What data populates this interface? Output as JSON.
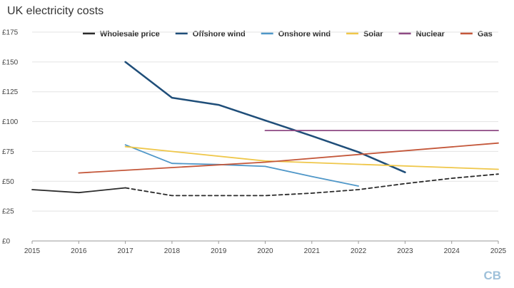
{
  "chart_data": {
    "type": "line",
    "title": "UK electricity costs",
    "xlabel": "",
    "ylabel": "",
    "x_categories": [
      "2015",
      "2016",
      "2017",
      "2018",
      "2019",
      "2020",
      "2021",
      "2022",
      "2023",
      "2024",
      "2025"
    ],
    "y_ticks": [
      "£0",
      "£25",
      "£50",
      "£75",
      "£100",
      "£125",
      "£150",
      "£175"
    ],
    "ylim": [
      0,
      175
    ],
    "grid": true,
    "legend_position": "top",
    "series": [
      {
        "name": "Wholesale price",
        "color": "#2b2b2b",
        "style": "solid-then-dashed",
        "dashed_from_x": 2017,
        "points": [
          [
            2015,
            43
          ],
          [
            2016,
            40.5
          ],
          [
            2017,
            44.5
          ],
          [
            2018,
            38
          ],
          [
            2019,
            38
          ],
          [
            2020,
            38
          ],
          [
            2021,
            40
          ],
          [
            2022,
            43
          ],
          [
            2023,
            48
          ],
          [
            2024,
            52.5
          ],
          [
            2025,
            56
          ]
        ]
      },
      {
        "name": "Offshore wind",
        "color": "#1f4e79",
        "style": "solid",
        "points": [
          [
            2017,
            150
          ],
          [
            2018,
            120
          ],
          [
            2019,
            114
          ],
          [
            2020,
            101
          ],
          [
            2021,
            88
          ],
          [
            2022,
            74.5
          ],
          [
            2023,
            57.5
          ]
        ]
      },
      {
        "name": "Onshore wind",
        "color": "#4f97c8",
        "style": "solid",
        "points": [
          [
            2017,
            80.5
          ],
          [
            2018,
            65
          ],
          [
            2019,
            64
          ],
          [
            2020,
            62.5
          ],
          [
            2021,
            54
          ],
          [
            2022,
            46
          ]
        ]
      },
      {
        "name": "Solar",
        "color": "#efc74a",
        "style": "solid",
        "points": [
          [
            2017,
            79
          ],
          [
            2020,
            67
          ],
          [
            2025,
            60
          ]
        ]
      },
      {
        "name": "Nuclear",
        "color": "#8e4a84",
        "style": "solid",
        "points": [
          [
            2020,
            92.5
          ],
          [
            2025,
            92.5
          ]
        ]
      },
      {
        "name": "Gas",
        "color": "#c4573a",
        "style": "solid",
        "points": [
          [
            2016,
            57
          ],
          [
            2020,
            66
          ],
          [
            2025,
            82
          ]
        ]
      }
    ]
  },
  "watermark": {
    "text": "CB"
  }
}
